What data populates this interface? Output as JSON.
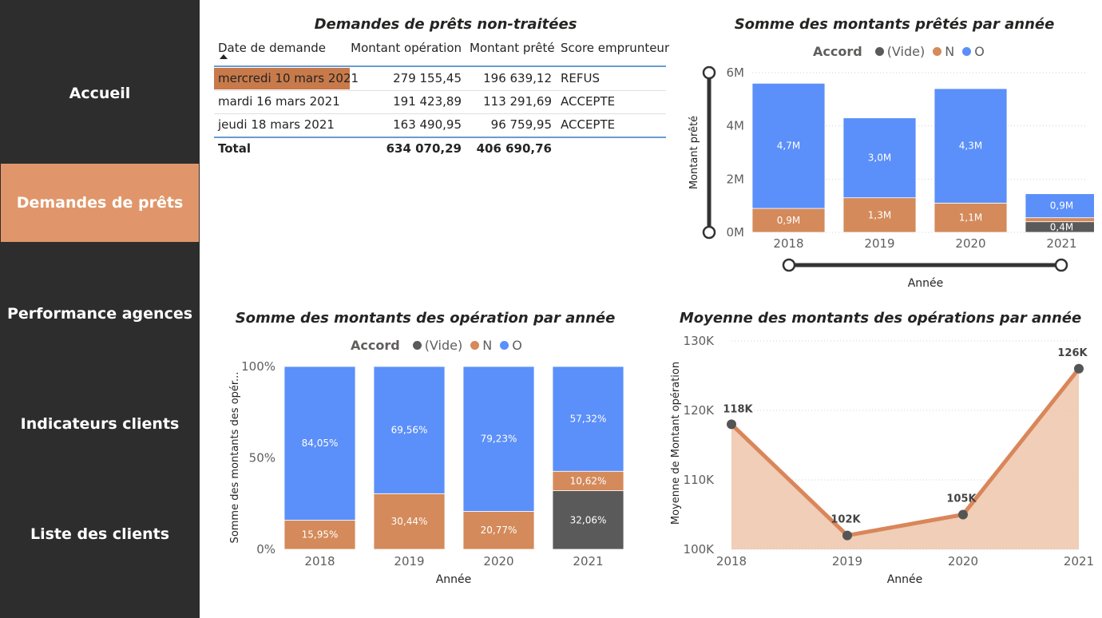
{
  "nav": {
    "items": [
      {
        "label": "Accueil"
      },
      {
        "label": "Demandes de prêts"
      },
      {
        "label": "Performance agences"
      },
      {
        "label": "Indicateurs clients"
      },
      {
        "label": "Liste des clients"
      }
    ],
    "active_index": 1
  },
  "colors": {
    "sidebar": "#2d2d2d",
    "accent": "#e0966a",
    "vide": "#5a5a5a",
    "n": "#d48a5a",
    "o": "#5b8ff9",
    "line": "#d9865a",
    "area": "#edc6aa"
  },
  "table": {
    "title": "Demandes de prêts non-traitées",
    "headers": [
      "Date de demande",
      "Montant opération",
      "Montant prêté",
      "Score emprunteur"
    ],
    "rows": [
      [
        "mercredi 10 mars 2021",
        "279 155,45",
        "196 639,12",
        "REFUS"
      ],
      [
        "mardi 16 mars 2021",
        "191 423,89",
        "113 291,69",
        "ACCEPTE"
      ],
      [
        "jeudi 18 mars 2021",
        "163 490,95",
        "96 759,95",
        "ACCEPTE"
      ]
    ],
    "total": [
      "Total",
      "634 070,29",
      "406 690,76",
      ""
    ]
  },
  "legend": {
    "title": "Accord",
    "items": [
      "(Vide)",
      "N",
      "O"
    ]
  },
  "chart_data": [
    {
      "type": "bar",
      "title": "Somme des montants prêtés par année",
      "xlabel": "Année",
      "ylabel": "Montant prêté",
      "categories": [
        "2018",
        "2019",
        "2020",
        "2021"
      ],
      "ylim": [
        0,
        6000000
      ],
      "yticks": [
        "0M",
        "2M",
        "4M",
        "6M"
      ],
      "series": [
        {
          "name": "(Vide)",
          "values": [
            0,
            0,
            0,
            0.4
          ],
          "labels": [
            "",
            "",
            "",
            "0,4M"
          ]
        },
        {
          "name": "N",
          "values": [
            0.9,
            1.3,
            1.1,
            0.15
          ],
          "labels": [
            "0,9M",
            "1,3M",
            "1,1M",
            ""
          ]
        },
        {
          "name": "O",
          "values": [
            4.7,
            3.0,
            4.3,
            0.9
          ],
          "labels": [
            "4,7M",
            "3,0M",
            "4,3M",
            "0,9M"
          ]
        }
      ]
    },
    {
      "type": "bar",
      "title": "Somme des montants des opération par année",
      "xlabel": "Année",
      "ylabel": "Somme des montants des opér...",
      "categories": [
        "2018",
        "2019",
        "2020",
        "2021"
      ],
      "ylim": [
        0,
        100
      ],
      "yticks": [
        "0%",
        "50%",
        "100%"
      ],
      "series": [
        {
          "name": "(Vide)",
          "values": [
            0,
            0,
            0,
            32.06
          ],
          "labels": [
            "",
            "",
            "",
            "32,06%"
          ]
        },
        {
          "name": "N",
          "values": [
            15.95,
            30.44,
            20.77,
            10.62
          ],
          "labels": [
            "15,95%",
            "30,44%",
            "20,77%",
            "10,62%"
          ]
        },
        {
          "name": "O",
          "values": [
            84.05,
            69.56,
            79.23,
            57.32
          ],
          "labels": [
            "84,05%",
            "69,56%",
            "79,23%",
            "57,32%"
          ]
        }
      ]
    },
    {
      "type": "area",
      "title": "Moyenne des montants des opérations par année",
      "xlabel": "Année",
      "ylabel": "Moyenne de Montant opération",
      "x": [
        "2018",
        "2019",
        "2020",
        "2021"
      ],
      "values": [
        118000,
        102000,
        105000,
        126000
      ],
      "labels": [
        "118K",
        "102K",
        "105K",
        "126K"
      ],
      "ylim": [
        100000,
        130000
      ],
      "yticks": [
        "100K",
        "110K",
        "120K",
        "130K"
      ]
    }
  ]
}
